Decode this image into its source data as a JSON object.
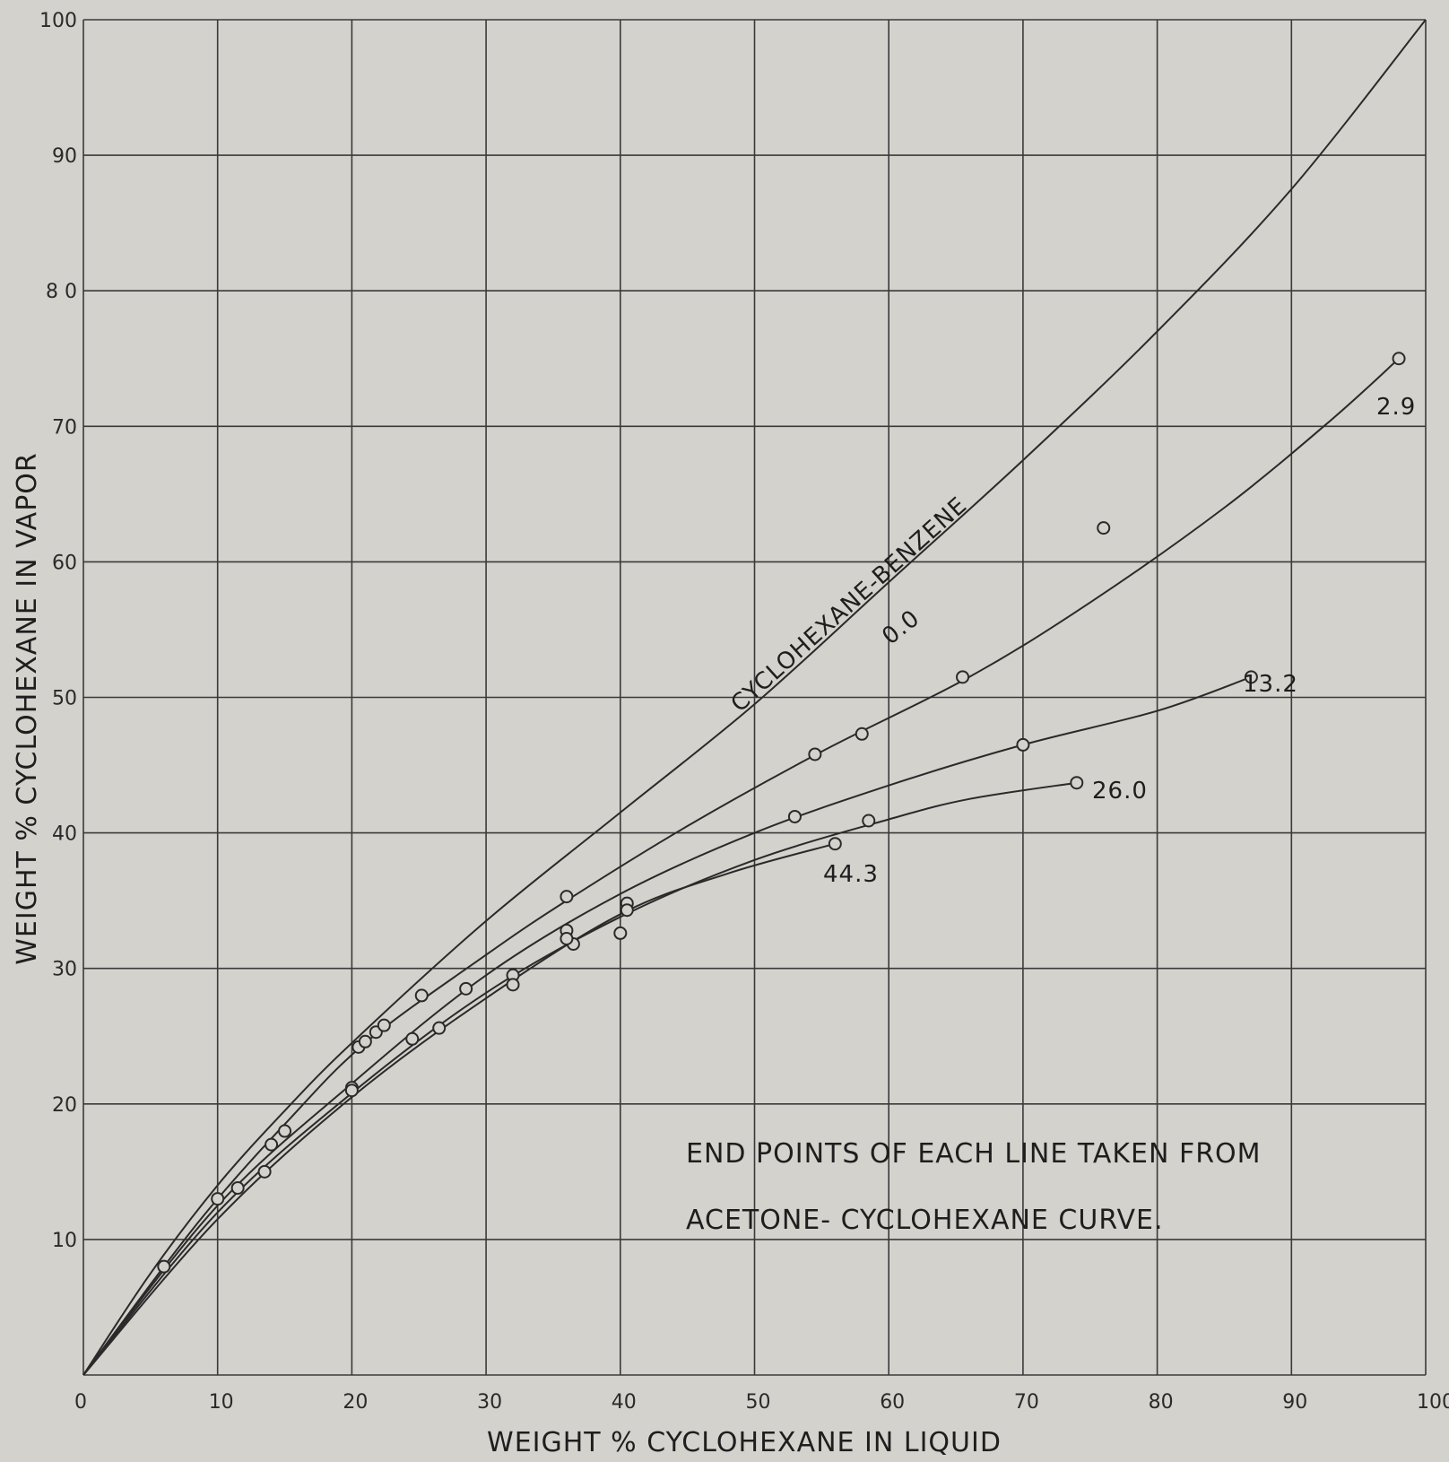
{
  "chart_data": {
    "type": "line",
    "title": "",
    "xlabel": "WEIGHT % CYCLOHEXANE IN LIQUID",
    "ylabel": "WEIGHT % CYCLOHEXANE IN VAPOR",
    "xlim": [
      0,
      100
    ],
    "ylim": [
      0,
      100
    ],
    "xticks": [
      "0",
      "10",
      "20",
      "30",
      "40",
      "50",
      "60",
      "70",
      "80",
      "90",
      "100"
    ],
    "yticks": [
      "",
      "10",
      "20",
      "30",
      "40",
      "50",
      "60",
      "70",
      "8 0",
      "90",
      "100"
    ],
    "grid": true,
    "legend": "none",
    "annotations": [
      "END POINTS OF EACH LINE TAKEN FROM",
      "ACETONE- CYCLOHEXANE  CURVE."
    ],
    "series": [
      {
        "name": "CYCLOHEXANE-BENZENE",
        "label_text": "CYCLOHEXANE-BENZENE",
        "curve": [
          [
            0,
            0
          ],
          [
            5,
            7.5
          ],
          [
            10,
            14
          ],
          [
            15,
            19.5
          ],
          [
            20,
            24.5
          ],
          [
            30,
            33.5
          ],
          [
            40,
            41.5
          ],
          [
            50,
            49.5
          ],
          [
            60,
            58.5
          ],
          [
            70,
            67.5
          ],
          [
            80,
            77
          ],
          [
            90,
            87.5
          ],
          [
            100,
            100
          ]
        ],
        "points": []
      },
      {
        "name": "0.0",
        "label_text": "0.0",
        "curve": [
          [
            0,
            0
          ],
          [
            6,
            8
          ],
          [
            10,
            13
          ],
          [
            15,
            18.5
          ],
          [
            21,
            24.5
          ],
          [
            30,
            31
          ],
          [
            36,
            35
          ],
          [
            45,
            40.5
          ],
          [
            55,
            46
          ],
          [
            66,
            51.5
          ],
          [
            75,
            57
          ],
          [
            85,
            64
          ],
          [
            93,
            70.5
          ],
          [
            98,
            75
          ]
        ],
        "points": [
          [
            6,
            8
          ],
          [
            10,
            13
          ],
          [
            14,
            17
          ],
          [
            15,
            18
          ],
          [
            20.5,
            24.2
          ],
          [
            21,
            24.6
          ],
          [
            21.8,
            25.3
          ],
          [
            22.4,
            25.8
          ],
          [
            25.2,
            28
          ],
          [
            36,
            35.3
          ],
          [
            54.5,
            45.8
          ],
          [
            58,
            47.3
          ],
          [
            65.5,
            51.5
          ]
        ]
      },
      {
        "name": "2.9",
        "label_text": "2.9",
        "curve": [
          [
            0,
            0
          ],
          [
            10,
            12.5
          ],
          [
            20,
            21.5
          ],
          [
            30,
            29.5
          ],
          [
            40,
            35.5
          ],
          [
            50,
            40
          ],
          [
            60,
            43.5
          ],
          [
            70,
            46.5
          ],
          [
            80,
            49
          ],
          [
            87,
            51.5
          ]
        ],
        "points": [
          [
            11.5,
            13.8
          ],
          [
            28.5,
            28.5
          ],
          [
            36,
            32.8
          ],
          [
            40.5,
            34.8
          ],
          [
            53,
            41.2
          ],
          [
            70,
            46.5
          ],
          [
            76,
            62.5
          ],
          [
            98,
            75
          ]
        ]
      },
      {
        "name": "13.2",
        "label_text": "13.2",
        "curve": [
          [
            0,
            0
          ],
          [
            10,
            12
          ],
          [
            20,
            20.8
          ],
          [
            30,
            28.2
          ],
          [
            40,
            33.8
          ],
          [
            50,
            38
          ],
          [
            60,
            41
          ],
          [
            66,
            42.5
          ],
          [
            74,
            43.7
          ]
        ],
        "points": [
          [
            13.5,
            15
          ],
          [
            20,
            21.2
          ],
          [
            32,
            29.5
          ],
          [
            36.5,
            31.8
          ],
          [
            40.5,
            34.3
          ],
          [
            58.5,
            40.9
          ],
          [
            87,
            51.5
          ]
        ]
      },
      {
        "name": "26.0",
        "label_text": "26.0",
        "curve": [
          [
            0,
            0
          ],
          [
            10,
            11.5
          ],
          [
            20,
            20.5
          ],
          [
            30,
            27.8
          ],
          [
            40,
            34
          ],
          [
            48,
            37
          ],
          [
            56,
            39.2
          ]
        ],
        "points": [
          [
            20,
            21
          ],
          [
            24.5,
            24.8
          ],
          [
            26.5,
            25.6
          ],
          [
            32,
            28.8
          ],
          [
            36,
            32.2
          ],
          [
            40,
            32.6
          ],
          [
            74,
            43.7
          ]
        ]
      },
      {
        "name": "44.3",
        "label_text": "44.3",
        "curve": [],
        "points": [
          [
            56,
            39.2
          ]
        ]
      }
    ]
  }
}
